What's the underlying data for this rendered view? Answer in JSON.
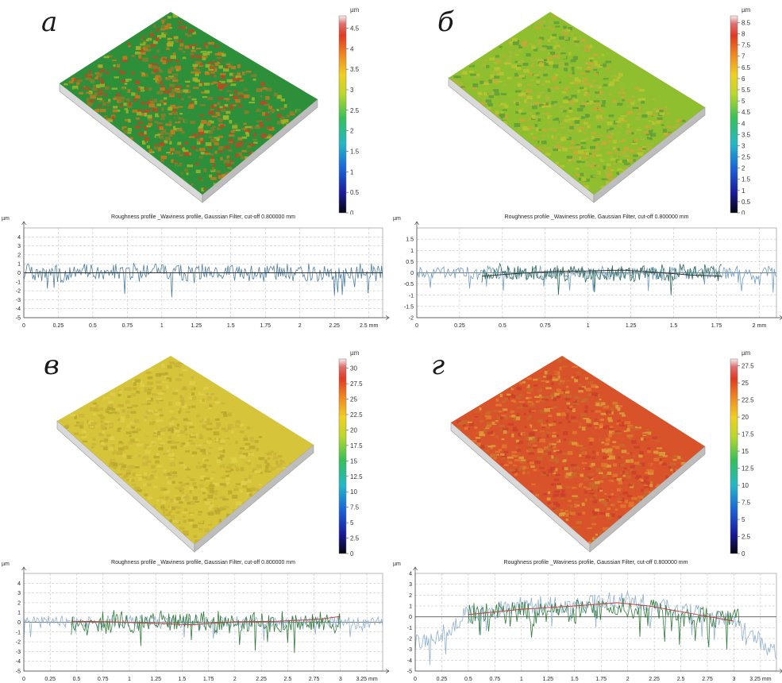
{
  "panels": [
    {
      "letter": "а",
      "colorbar": {
        "unit": "µm",
        "ticks": [
          "0",
          "0.5",
          "1",
          "1.5",
          "2",
          "2.5",
          "3",
          "3.5",
          "4",
          "4.5"
        ],
        "max": 4.8
      },
      "surface": {
        "palette": [
          "#2e8f3a",
          "#9fb52a",
          "#c97a1f",
          "#b84a22",
          "#8a7d2a"
        ],
        "hue": "mixed red-green"
      },
      "chart_data": {
        "type": "line",
        "title": "Roughness profile _Waviness profile, Gaussian Filter, cut-off 0.800000 mm",
        "ylabel": "µm",
        "xunit": "mm",
        "xlim": [
          0,
          2.6
        ],
        "ylim": [
          -5,
          5
        ],
        "xticks": [
          "0",
          "0.25",
          "0.5",
          "0.75",
          "1",
          "1.25",
          "1.5",
          "1.75",
          "2",
          "2.25",
          "2.5"
        ],
        "yticks": [
          "4",
          "3",
          "2",
          "1",
          "0",
          "-1",
          "-2",
          "-3",
          "-4",
          "-5"
        ],
        "series": [
          {
            "role": "primary",
            "color": "#4f7fa0",
            "amplitude": 1.2,
            "x_start": 0,
            "x_end": 2.6
          },
          {
            "role": "waviness",
            "color": "#333333",
            "points": [
              [
                0,
                0
              ],
              [
                2.6,
                0
              ]
            ]
          }
        ]
      }
    },
    {
      "letter": "б",
      "colorbar": {
        "unit": "µm",
        "ticks": [
          "0",
          "0.5",
          "1",
          "1.5",
          "2",
          "2.5",
          "3",
          "3.5",
          "4",
          "4.5",
          "5",
          "5.5",
          "6",
          "6.5",
          "7",
          "7.5",
          "8",
          "8.5"
        ],
        "max": 8.8
      },
      "surface": {
        "palette": [
          "#8fbf2e",
          "#b9c62f",
          "#c9a735",
          "#5e9f3a",
          "#a6b83a"
        ],
        "hue": "green-yellow"
      },
      "chart_data": {
        "type": "line",
        "title": "Roughness profile _Waviness profile, Gaussian Filter, cut-off 0.800000 mm",
        "ylabel": "µm",
        "xunit": "mm",
        "xlim": [
          0,
          2.1
        ],
        "ylim": [
          -2,
          2
        ],
        "xticks": [
          "0",
          "0.25",
          "0.5",
          "0.75",
          "1",
          "1.25",
          "1.5",
          "1.75",
          "2"
        ],
        "yticks": [
          "1.5",
          "1",
          "0.5",
          "0",
          "-0.5",
          "-1",
          "-1.5",
          "-2"
        ],
        "series": [
          {
            "role": "light",
            "color": "#6f9cc4",
            "amplitude": 0.35,
            "x_start": 0,
            "x_end": 2.1
          },
          {
            "role": "primary",
            "color": "#2f6b5a",
            "amplitude": 0.45,
            "x_start": 0.38,
            "x_end": 1.78
          },
          {
            "role": "waviness",
            "color": "#333333",
            "points": [
              [
                0.38,
                -0.15
              ],
              [
                0.6,
                -0.02
              ],
              [
                0.8,
                0.06
              ],
              [
                1.0,
                0.08
              ],
              [
                1.2,
                0.12
              ],
              [
                1.4,
                0.02
              ],
              [
                1.6,
                -0.1
              ],
              [
                1.78,
                -0.15
              ]
            ]
          }
        ]
      }
    },
    {
      "letter": "в",
      "colorbar": {
        "unit": "µm",
        "ticks": [
          "0",
          "2.5",
          "5",
          "7.5",
          "10",
          "12.5",
          "15",
          "17.5",
          "20",
          "22.5",
          "25",
          "27.5",
          "30"
        ],
        "max": 31.5
      },
      "surface": {
        "palette": [
          "#d6c43a",
          "#c9b232",
          "#e0cf4a",
          "#b8a82c",
          "#cdb63c"
        ],
        "hue": "yellow"
      },
      "chart_data": {
        "type": "line",
        "title": "Roughness profile _Waviness profile, Gaussian Filter, cut-off 0.800000 mm",
        "ylabel": "µm",
        "xunit": "mm",
        "xlim": [
          0,
          3.4
        ],
        "ylim": [
          -5,
          5
        ],
        "xticks": [
          "0",
          "0.25",
          "0.5",
          "0.75",
          "1",
          "1.25",
          "1.5",
          "1.75",
          "2",
          "2.25",
          "2.5",
          "2.75",
          "3",
          "3.25"
        ],
        "yticks": [
          "4",
          "3",
          "2",
          "1",
          "0",
          "-1",
          "-2",
          "-3",
          "-4",
          "-5"
        ],
        "series": [
          {
            "role": "light",
            "color": "#8fb0cf",
            "amplitude": 0.8,
            "x_start": 0,
            "x_end": 3.4
          },
          {
            "role": "primary",
            "color": "#2f7a3a",
            "amplitude": 1.3,
            "x_start": 0.45,
            "x_end": 3.0
          },
          {
            "role": "waviness",
            "color": "#c04040",
            "points": [
              [
                0.45,
                0.1
              ],
              [
                0.8,
                0.05
              ],
              [
                1.2,
                -0.1
              ],
              [
                1.6,
                -0.25
              ],
              [
                2.0,
                0.05
              ],
              [
                2.4,
                0.1
              ],
              [
                2.8,
                0.3
              ],
              [
                3.0,
                0.6
              ]
            ]
          }
        ]
      }
    },
    {
      "letter": "г",
      "colorbar": {
        "unit": "µm",
        "ticks": [
          "0",
          "2.5",
          "5",
          "7.5",
          "10",
          "12.5",
          "15",
          "17.5",
          "20",
          "22.5",
          "25",
          "27.5"
        ],
        "max": 28.5
      },
      "surface": {
        "palette": [
          "#d9532a",
          "#e0792e",
          "#c9402a",
          "#dba03a",
          "#c86a2c"
        ],
        "hue": "orange-red"
      },
      "chart_data": {
        "type": "line",
        "title": "Roughness profile _Waviness profile, Gaussian Filter, cut-off 0.800000 mm",
        "ylabel": "µm",
        "xunit": "mm",
        "xlim": [
          0,
          3.4
        ],
        "ylim": [
          -5,
          4
        ],
        "xticks": [
          "0",
          "0.25",
          "0.5",
          "0.75",
          "1",
          "1.25",
          "1.5",
          "1.75",
          "2",
          "2.25",
          "2.5",
          "2.75",
          "3",
          "3.25"
        ],
        "yticks": [
          "4",
          "3",
          "2",
          "1",
          "0",
          "-1",
          "-2",
          "-3",
          "-4",
          "-5"
        ],
        "series": [
          {
            "role": "light",
            "color": "#8fb0cf",
            "amplitude": 1.0,
            "x_start": 0,
            "x_end": 3.4,
            "envelope": [
              [
                0,
                -2.5
              ],
              [
                0.3,
                -1.5
              ],
              [
                0.5,
                0.3
              ],
              [
                1.0,
                0.9
              ],
              [
                1.5,
                1.2
              ],
              [
                2.0,
                1.7
              ],
              [
                2.5,
                0.6
              ],
              [
                3.0,
                -0.3
              ],
              [
                3.4,
                -3.5
              ]
            ]
          },
          {
            "role": "primary",
            "color": "#2f7a3a",
            "amplitude": 1.3,
            "x_start": 0.5,
            "x_end": 3.05,
            "envelope": [
              [
                0.5,
                0.2
              ],
              [
                1.0,
                0.3
              ],
              [
                1.5,
                0.6
              ],
              [
                2.0,
                0.8
              ],
              [
                2.5,
                0.2
              ],
              [
                3.05,
                -0.2
              ]
            ]
          },
          {
            "role": "waviness",
            "color": "#c04040",
            "points": [
              [
                0.5,
                0.2
              ],
              [
                1.0,
                0.7
              ],
              [
                1.5,
                1.0
              ],
              [
                1.9,
                1.3
              ],
              [
                2.2,
                1.0
              ],
              [
                2.6,
                0.3
              ],
              [
                3.0,
                -0.4
              ]
            ]
          }
        ]
      }
    }
  ]
}
